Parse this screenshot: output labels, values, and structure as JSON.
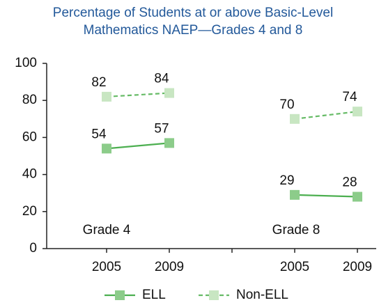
{
  "chart_data": {
    "type": "line",
    "title": "Percentage of Students at or above Basic-Level Mathematics NAEP—Grades 4 and 8",
    "categories": [
      "2005",
      "2009",
      null,
      "2005",
      "2009"
    ],
    "annotations": [
      "Grade 4",
      "Grade 8"
    ],
    "series": [
      {
        "name": "ELL",
        "color": "#4caf50",
        "marker_color": "#8ccc8a",
        "dashed": false,
        "values": [
          54,
          57,
          null,
          29,
          28
        ]
      },
      {
        "name": "Non-ELL",
        "color": "#66bb66",
        "marker_color": "#c8e6c2",
        "dashed": true,
        "values": [
          82,
          84,
          null,
          70,
          74
        ]
      }
    ],
    "ylim": [
      0,
      100
    ],
    "yticks": [
      0,
      20,
      40,
      60,
      80,
      100
    ],
    "grid": false
  }
}
